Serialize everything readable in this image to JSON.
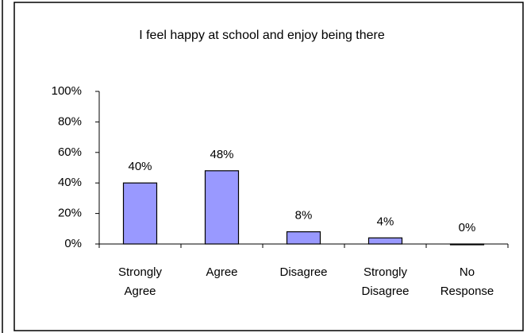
{
  "chart_data": {
    "type": "bar",
    "title": "I feel happy at school and enjoy being there",
    "categories": [
      "Strongly Agree",
      "Agree",
      "Disagree",
      "Strongly Disagree",
      "No Response"
    ],
    "values": [
      40,
      48,
      8,
      4,
      0
    ],
    "value_labels": [
      "40%",
      "48%",
      "8%",
      "4%",
      "0%"
    ],
    "color": "#9999ff",
    "ylim": [
      0,
      100
    ],
    "yticks": [
      {
        "value": 0,
        "label": "0%"
      },
      {
        "value": 20,
        "label": "20%"
      },
      {
        "value": 40,
        "label": "40%"
      },
      {
        "value": 60,
        "label": "60%"
      },
      {
        "value": 80,
        "label": "80%"
      },
      {
        "value": 100,
        "label": "100%"
      }
    ],
    "grid": false
  }
}
